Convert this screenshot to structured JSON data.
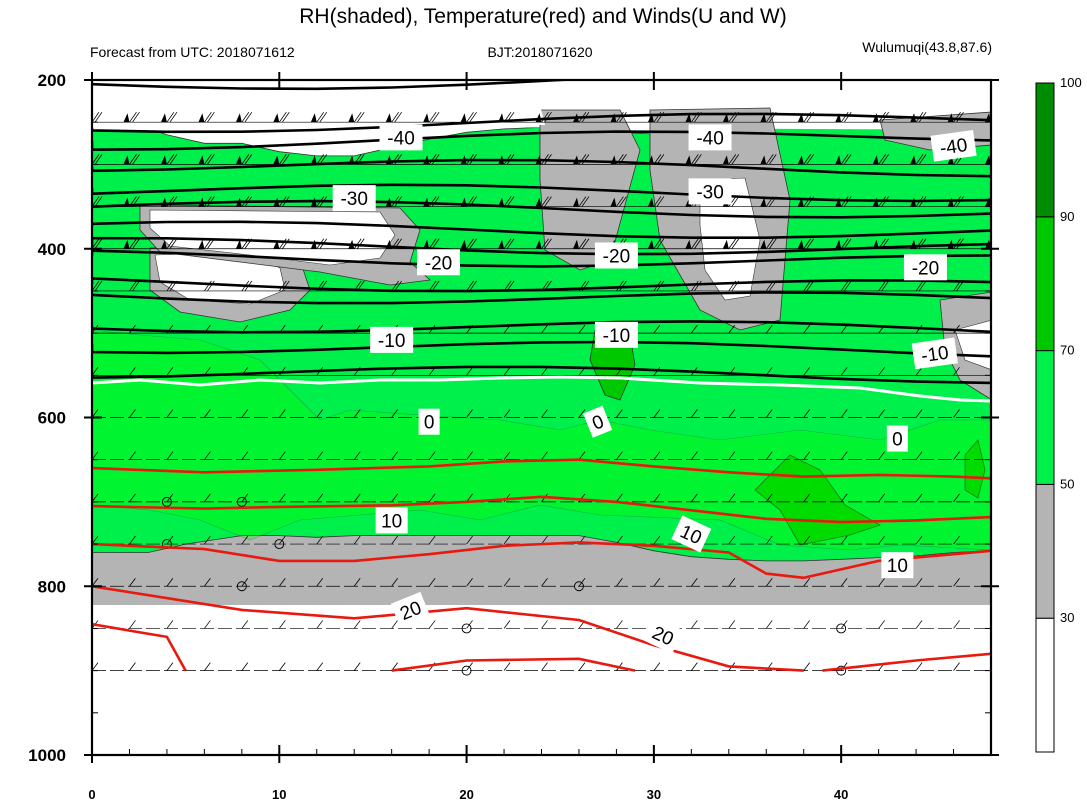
{
  "chart_data": {
    "type": "heatmap",
    "title": "RH(shaded), Temperature(red) and Winds(U and W)",
    "subtitle_left": "Forecast from UTC: 2018071612",
    "subtitle_center": "BJT:2018071620",
    "subtitle_right": "Wulumuqi(43.8,87.6)",
    "xlim": [
      0,
      48
    ],
    "ylim": [
      1000,
      200
    ],
    "x_ticks": [
      0,
      10,
      20,
      30,
      40
    ],
    "y_ticks": [
      200,
      400,
      600,
      800,
      1000
    ],
    "x_tick_labels": [
      "0",
      "10",
      "20",
      "30",
      "40"
    ],
    "y_tick_labels": [
      "200",
      "400",
      "600",
      "800",
      "1000"
    ],
    "grid": false,
    "pressure_levels": [
      250,
      300,
      350,
      400,
      450,
      500,
      550,
      600,
      650,
      700,
      750,
      800,
      850,
      900
    ],
    "surface_pressure": 900,
    "colorbar": {
      "position": "right",
      "levels": [
        30,
        50,
        70,
        90,
        100
      ],
      "tick_labels": [
        "30",
        "50",
        "70",
        "90",
        "100"
      ],
      "colors": [
        "#ffffff",
        "#b4b4b4",
        "#00f04b",
        "#00c800",
        "#008c00"
      ]
    },
    "rh_regions": {
      "moist_band_top": [
        [
          0,
          245
        ],
        [
          2,
          250
        ],
        [
          4,
          265
        ],
        [
          6,
          275
        ],
        [
          8,
          275
        ],
        [
          10,
          285
        ],
        [
          12,
          290
        ],
        [
          14,
          290
        ],
        [
          16,
          280
        ],
        [
          18,
          270
        ],
        [
          20,
          262
        ],
        [
          22,
          258
        ],
        [
          24,
          256
        ],
        [
          26,
          256
        ],
        [
          28,
          262
        ],
        [
          30,
          264
        ],
        [
          32,
          262
        ],
        [
          34,
          258
        ],
        [
          36,
          255
        ],
        [
          38,
          255
        ],
        [
          40,
          255
        ],
        [
          42,
          258
        ],
        [
          44,
          256
        ],
        [
          46,
          255
        ],
        [
          48,
          258
        ]
      ],
      "grey_band_top": [
        [
          0,
          880
        ],
        [
          3,
          880
        ],
        [
          5,
          870
        ],
        [
          8,
          860
        ],
        [
          10,
          860
        ],
        [
          12,
          862
        ],
        [
          14,
          860
        ],
        [
          16,
          855
        ],
        [
          18,
          850
        ],
        [
          20,
          848
        ],
        [
          22,
          845
        ],
        [
          24,
          850
        ],
        [
          26,
          858
        ],
        [
          28,
          868
        ],
        [
          30,
          878
        ],
        [
          32,
          885
        ],
        [
          34,
          888
        ],
        [
          36,
          890
        ],
        [
          38,
          890
        ],
        [
          40,
          888
        ],
        [
          42,
          886
        ],
        [
          44,
          884
        ],
        [
          46,
          880
        ],
        [
          48,
          878
        ]
      ]
    },
    "temperature_contours": [
      {
        "level": 10,
        "label": "10",
        "points": [
          [
            0,
            700
          ],
          [
            4,
            706
          ],
          [
            8,
            705
          ],
          [
            12,
            704
          ],
          [
            16,
            702
          ],
          [
            20,
            698
          ],
          [
            22,
            694
          ],
          [
            24,
            690
          ],
          [
            26,
            688
          ],
          [
            28,
            694
          ],
          [
            30,
            700
          ],
          [
            32,
            706
          ],
          [
            34,
            712
          ],
          [
            36,
            718
          ],
          [
            38,
            722
          ],
          [
            40,
            724
          ],
          [
            42,
            724
          ],
          [
            44,
            722
          ],
          [
            46,
            720
          ],
          [
            48,
            722
          ]
        ]
      },
      {
        "level": 20,
        "label": "20",
        "points": [
          [
            0,
            808
          ],
          [
            4,
            818
          ],
          [
            8,
            828
          ],
          [
            10,
            834
          ],
          [
            12,
            838
          ],
          [
            14,
            838
          ],
          [
            16,
            834
          ],
          [
            18,
            828
          ],
          [
            20,
            826
          ],
          [
            22,
            826
          ],
          [
            24,
            830
          ],
          [
            26,
            840
          ],
          [
            28,
            854
          ],
          [
            30,
            870
          ],
          [
            32,
            882
          ],
          [
            34,
            895
          ],
          [
            36,
            898
          ],
          [
            38,
            900
          ]
        ]
      }
    ],
    "isotherm_labels": [
      "-40",
      "-40",
      "-40",
      "-30",
      "-30",
      "-20",
      "-20",
      "-20",
      "-10",
      "-10",
      "-10",
      "0",
      "0",
      "0",
      "10",
      "10",
      "10",
      "20",
      "20"
    ]
  }
}
